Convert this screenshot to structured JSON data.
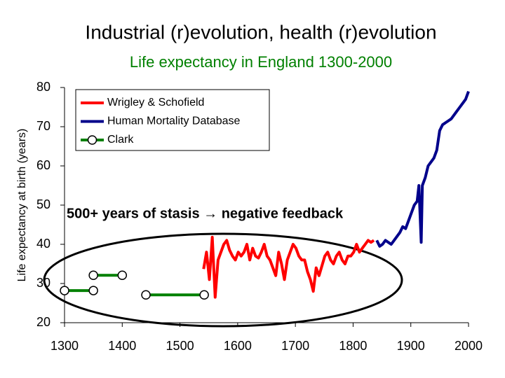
{
  "chart_data": {
    "type": "line",
    "title": "Industrial (r)evolution, health (r)evolution",
    "subtitle": "Life expectancy in England 1300-2000",
    "y_label": "Life expectancy at birth (years)",
    "annotation": "500+ years of stasis → negative feedback",
    "xlim": [
      1300,
      2000
    ],
    "xticks": [
      1300,
      1400,
      1500,
      1600,
      1700,
      1800,
      1900,
      2000
    ],
    "ylim": [
      20,
      80
    ],
    "yticks": [
      20,
      30,
      40,
      50,
      60,
      70,
      80
    ],
    "grid": false,
    "legend": "top-left",
    "series": [
      {
        "name": "Wrigley & Schofield",
        "color": "#ff0000",
        "marker": "none",
        "x": [
          1541,
          1546,
          1551,
          1556,
          1561,
          1566,
          1571,
          1576,
          1581,
          1586,
          1591,
          1596,
          1601,
          1606,
          1611,
          1616,
          1621,
          1626,
          1631,
          1636,
          1641,
          1646,
          1651,
          1656,
          1661,
          1666,
          1671,
          1676,
          1681,
          1686,
          1691,
          1696,
          1701,
          1706,
          1711,
          1716,
          1721,
          1726,
          1731,
          1736,
          1741,
          1746,
          1751,
          1756,
          1761,
          1766,
          1771,
          1776,
          1781,
          1786,
          1791,
          1796,
          1801,
          1806,
          1811,
          1816,
          1821,
          1826,
          1831,
          1836
        ],
        "values": [
          33.7,
          38,
          31,
          41.8,
          26.5,
          36,
          38,
          40,
          41,
          38.5,
          37,
          36,
          38,
          37,
          38,
          40,
          36,
          39,
          37,
          36.5,
          38,
          40,
          37,
          36,
          34,
          32,
          38,
          35,
          31,
          36,
          38,
          40,
          39,
          37,
          36,
          36,
          33,
          31,
          28,
          34,
          32,
          34.5,
          37,
          38,
          36,
          35,
          37,
          38,
          36,
          35,
          37,
          37,
          38,
          40,
          38,
          39,
          40,
          41,
          40.5,
          41
        ]
      },
      {
        "name": "Human Mortality Database",
        "color": "#00008b",
        "marker": "none",
        "x": [
          1841,
          1846,
          1851,
          1856,
          1861,
          1866,
          1871,
          1876,
          1881,
          1886,
          1891,
          1896,
          1901,
          1906,
          1911,
          1914,
          1918,
          1920,
          1925,
          1930,
          1935,
          1940,
          1945,
          1950,
          1955,
          1960,
          1965,
          1970,
          1975,
          1980,
          1985,
          1990,
          1995,
          2000
        ],
        "values": [
          41,
          39.5,
          40,
          41,
          40.5,
          40,
          41,
          42,
          43,
          44.5,
          44,
          46,
          48,
          50,
          51,
          55,
          40.5,
          55,
          57,
          60,
          61,
          62,
          64,
          69,
          70.5,
          71,
          71.5,
          72,
          73,
          74,
          75,
          76,
          77,
          79
        ]
      },
      {
        "name": "Clark",
        "color": "#008000",
        "marker": "circle",
        "x": [
          1300,
          1350,
          1350,
          1350,
          1400,
          1400,
          1441,
          1542
        ],
        "values": [
          28.2,
          28.2,
          null,
          32.1,
          32.1,
          null,
          27.1,
          27.1
        ]
      }
    ]
  }
}
